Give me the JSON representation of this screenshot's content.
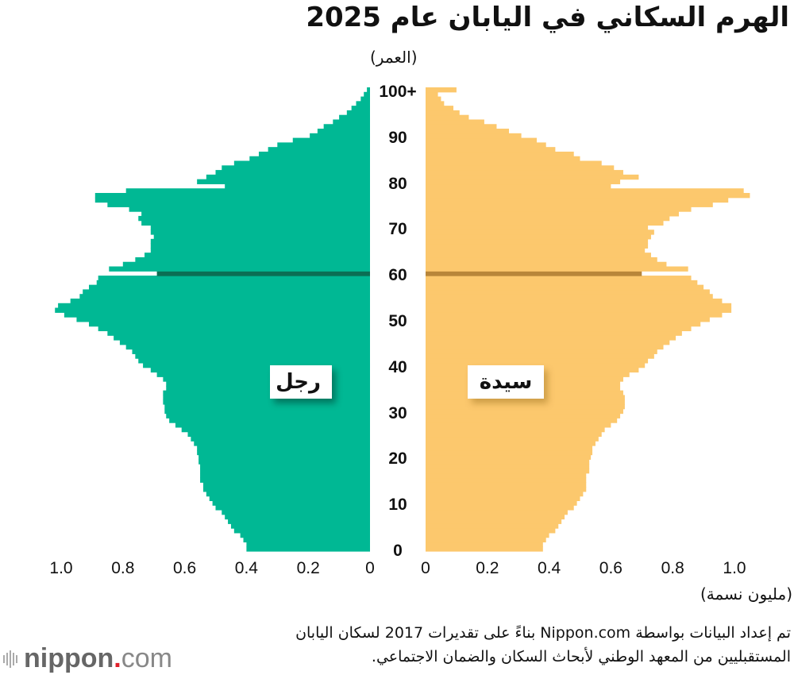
{
  "title": "الهرم السكاني في اليابان عام 2025",
  "age_axis_label": "(العمر)",
  "x_axis_unit": "(مليون نسمة)",
  "legend": {
    "male": "رجل",
    "female": "سيدة"
  },
  "source": {
    "line1": "تم إعداد البيانات بواسطة Nippon.com بناءً على تقديرات 2017 لسكان اليابان",
    "line2": "المستقبليين من المعهد الوطني لأبحاث السكان والضمان الاجتماعي."
  },
  "logo": {
    "brand": "nippon",
    "dot": ".",
    "tld": "com"
  },
  "colors": {
    "male": "#00b894",
    "male_highlight": "#0b6e54",
    "female": "#fcc86d",
    "female_highlight": "#b8863a"
  },
  "chart_data": {
    "type": "bar",
    "orientation": "horizontal-population-pyramid",
    "title": "الهرم السكاني في اليابان عام 2025",
    "ylabel": "(العمر)",
    "xlabel": "(مليون نسمة)",
    "age_ticks": [
      "0",
      "10",
      "20",
      "30",
      "40",
      "50",
      "60",
      "70",
      "80",
      "90",
      "100+"
    ],
    "x_ticks_male": [
      "1.0",
      "0.8",
      "0.6",
      "0.4",
      "0.2",
      "0"
    ],
    "x_ticks_female": [
      "0",
      "0.2",
      "0.4",
      "0.6",
      "0.8",
      "1.0"
    ],
    "xlim": [
      0,
      1.0
    ],
    "highlight_age": 60,
    "ages": [
      0,
      1,
      2,
      3,
      4,
      5,
      6,
      7,
      8,
      9,
      10,
      11,
      12,
      13,
      14,
      15,
      16,
      17,
      18,
      19,
      20,
      21,
      22,
      23,
      24,
      25,
      26,
      27,
      28,
      29,
      30,
      31,
      32,
      33,
      34,
      35,
      36,
      37,
      38,
      39,
      40,
      41,
      42,
      43,
      44,
      45,
      46,
      47,
      48,
      49,
      50,
      51,
      52,
      53,
      54,
      55,
      56,
      57,
      58,
      59,
      60,
      61,
      62,
      63,
      64,
      65,
      66,
      67,
      68,
      69,
      70,
      71,
      72,
      73,
      74,
      75,
      76,
      77,
      78,
      79,
      80,
      81,
      82,
      83,
      84,
      85,
      86,
      87,
      88,
      89,
      90,
      91,
      92,
      93,
      94,
      95,
      96,
      97,
      98,
      99,
      100
    ],
    "series": [
      {
        "name": "رجل",
        "values": [
          0.4,
          0.4,
          0.41,
          0.42,
          0.44,
          0.45,
          0.46,
          0.47,
          0.48,
          0.5,
          0.51,
          0.52,
          0.53,
          0.54,
          0.54,
          0.55,
          0.55,
          0.55,
          0.55,
          0.555,
          0.555,
          0.56,
          0.56,
          0.57,
          0.58,
          0.59,
          0.61,
          0.63,
          0.65,
          0.66,
          0.665,
          0.665,
          0.67,
          0.67,
          0.67,
          0.66,
          0.66,
          0.67,
          0.69,
          0.71,
          0.735,
          0.75,
          0.76,
          0.77,
          0.79,
          0.81,
          0.83,
          0.85,
          0.88,
          0.91,
          0.95,
          0.99,
          1.02,
          1.01,
          0.97,
          0.94,
          0.93,
          0.91,
          0.885,
          0.88,
          0.69,
          0.845,
          0.8,
          0.76,
          0.73,
          0.71,
          0.71,
          0.71,
          0.7,
          0.71,
          0.71,
          0.74,
          0.75,
          0.74,
          0.78,
          0.85,
          0.89,
          0.89,
          0.79,
          0.47,
          0.56,
          0.53,
          0.5,
          0.48,
          0.44,
          0.39,
          0.36,
          0.33,
          0.3,
          0.25,
          0.195,
          0.17,
          0.15,
          0.12,
          0.1,
          0.075,
          0.06,
          0.045,
          0.03,
          0.02,
          0.01
        ]
      },
      {
        "name": "سيدة",
        "values": [
          0.38,
          0.38,
          0.39,
          0.4,
          0.42,
          0.43,
          0.44,
          0.45,
          0.46,
          0.48,
          0.49,
          0.5,
          0.51,
          0.52,
          0.52,
          0.52,
          0.52,
          0.53,
          0.53,
          0.53,
          0.535,
          0.54,
          0.54,
          0.55,
          0.56,
          0.57,
          0.58,
          0.6,
          0.62,
          0.63,
          0.64,
          0.645,
          0.645,
          0.645,
          0.64,
          0.63,
          0.63,
          0.64,
          0.66,
          0.69,
          0.71,
          0.72,
          0.74,
          0.75,
          0.77,
          0.79,
          0.81,
          0.83,
          0.86,
          0.89,
          0.92,
          0.96,
          0.99,
          0.99,
          0.96,
          0.93,
          0.92,
          0.9,
          0.88,
          0.86,
          0.7,
          0.85,
          0.78,
          0.75,
          0.73,
          0.71,
          0.72,
          0.72,
          0.73,
          0.74,
          0.72,
          0.77,
          0.79,
          0.82,
          0.86,
          0.93,
          0.98,
          1.05,
          1.03,
          0.6,
          0.63,
          0.69,
          0.64,
          0.61,
          0.57,
          0.5,
          0.48,
          0.42,
          0.39,
          0.36,
          0.31,
          0.27,
          0.23,
          0.19,
          0.14,
          0.11,
          0.09,
          0.06,
          0.05,
          0.04,
          0.1
        ]
      }
    ]
  }
}
